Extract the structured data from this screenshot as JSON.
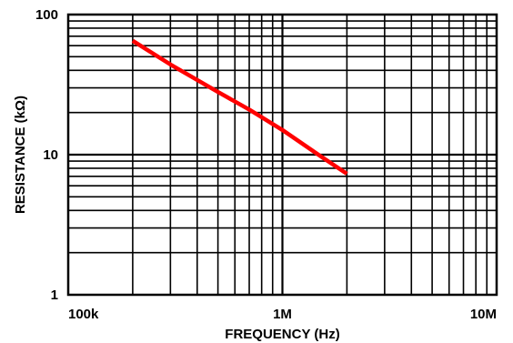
{
  "chart_data": {
    "type": "line",
    "title": "",
    "xlabel": "FREQUENCY (Hz)",
    "ylabel": "RESISTANCE (kΩ)",
    "xscale": "log",
    "yscale": "log",
    "xlim": [
      100000,
      10000000
    ],
    "ylim": [
      1,
      100
    ],
    "grid": true,
    "legend": "none",
    "x_ticks": [
      {
        "value": 100000,
        "label": "100k"
      },
      {
        "value": 1000000,
        "label": "1M"
      },
      {
        "value": 10000000,
        "label": "10M"
      }
    ],
    "y_ticks": [
      {
        "value": 1,
        "label": "1"
      },
      {
        "value": 10,
        "label": "10"
      },
      {
        "value": 100,
        "label": "100"
      }
    ],
    "series": [
      {
        "color": "#ff0000",
        "points": [
          {
            "x": 200000,
            "y": 65
          },
          {
            "x": 300000,
            "y": 44
          },
          {
            "x": 500000,
            "y": 28
          },
          {
            "x": 700000,
            "y": 21
          },
          {
            "x": 1000000,
            "y": 15
          },
          {
            "x": 1500000,
            "y": 9.8
          },
          {
            "x": 2000000,
            "y": 7.3
          }
        ]
      }
    ]
  }
}
